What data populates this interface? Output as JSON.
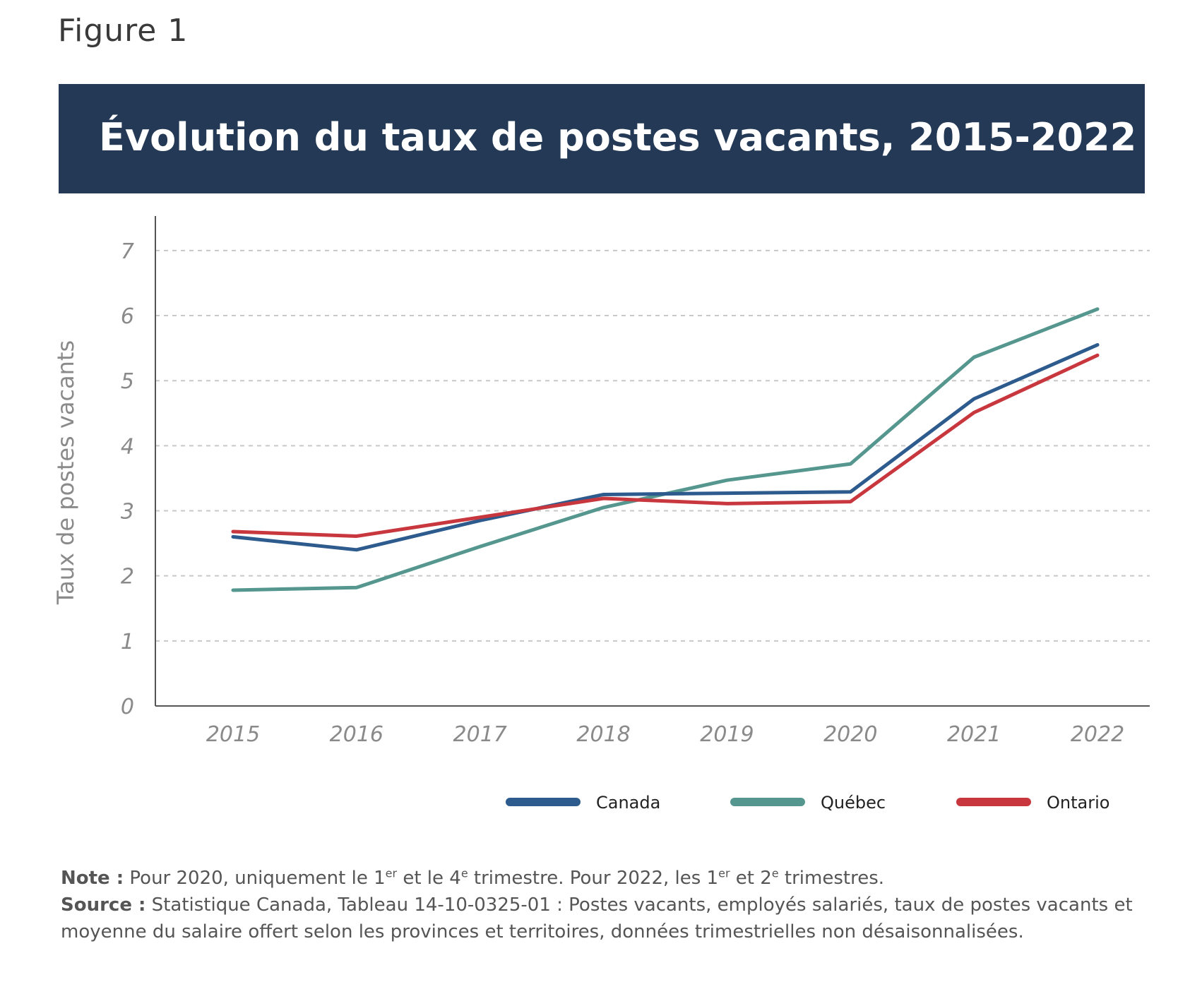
{
  "figure_label": "Figure 1",
  "title": "Évolution du taux de postes vacants, 2015-2022",
  "colors": {
    "title_band": "#233955",
    "canada": "#2e5b8e",
    "quebec": "#55978f",
    "ontario": "#c9373e"
  },
  "chart_data": {
    "type": "line",
    "title": "Évolution du taux de postes vacants, 2015-2022",
    "xlabel": "",
    "ylabel": "Taux de postes vacants",
    "categories": [
      "2015",
      "2016",
      "2017",
      "2018",
      "2019",
      "2020",
      "2021",
      "2022"
    ],
    "yticks": [
      "0",
      "1",
      "2",
      "3",
      "4",
      "5",
      "6",
      "7"
    ],
    "ylim": [
      0,
      7.4
    ],
    "grid": "horizontal dashed",
    "legend_position": "bottom-right",
    "series": [
      {
        "name": "Canada",
        "color": "#2e5b8e",
        "values": [
          2.6,
          2.4,
          2.85,
          3.25,
          3.27,
          3.29,
          4.72,
          5.55
        ]
      },
      {
        "name": "Québec",
        "color": "#55978f",
        "values": [
          1.78,
          1.82,
          2.45,
          3.05,
          3.47,
          3.72,
          5.36,
          6.1
        ]
      },
      {
        "name": "Ontario",
        "color": "#c9373e",
        "values": [
          2.68,
          2.61,
          2.9,
          3.19,
          3.11,
          3.14,
          4.51,
          5.39
        ]
      }
    ]
  },
  "notes": {
    "note_label": "Note :",
    "note_text_a": " Pour 2020, uniquement le 1",
    "note_sup_a": "er",
    "note_text_b": " et le 4",
    "note_sup_b": "e",
    "note_text_c": " trimestre. Pour 2022, les 1",
    "note_sup_c": "er",
    "note_text_d": " et 2",
    "note_sup_d": "e",
    "note_text_e": " trimestres.",
    "source_label": "Source :",
    "source_text": " Statistique Canada, Tableau 14-10-0325-01 : Postes vacants, employés salariés, taux de postes vacants et moyenne du salaire offert selon les provinces et territoires, données trimestrielles non désaisonnalisées."
  }
}
